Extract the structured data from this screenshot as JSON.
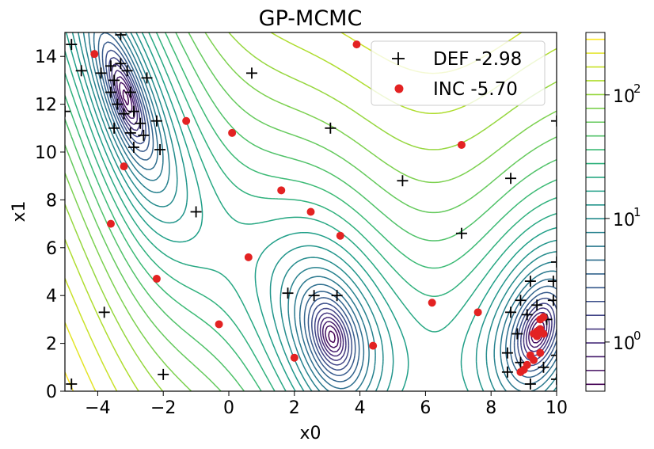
{
  "chart_data": {
    "type": "scatter",
    "title": "GP-MCMC",
    "xlabel": "x0",
    "ylabel": "x1",
    "xlim": [
      -5,
      10
    ],
    "ylim": [
      0,
      15
    ],
    "xticks": [
      -4,
      -2,
      0,
      2,
      4,
      6,
      8,
      10
    ],
    "yticks": [
      0,
      2,
      4,
      6,
      8,
      10,
      12,
      14
    ],
    "xtick_labels": [
      "−4",
      "−2",
      "0",
      "2",
      "4",
      "6",
      "8",
      "10"
    ],
    "ytick_labels": [
      "0",
      "2",
      "4",
      "6",
      "8",
      "10",
      "12",
      "14"
    ],
    "grid": false,
    "legend_position": "top-right",
    "background": "contour plot of a log-scaled objective (viridis), minima near (-3.1, 12.3), (3.1, 2.3), (9.4, 2.5)",
    "colorbar": {
      "scale": "log",
      "range": [
        0.4,
        320
      ],
      "ticks": [
        1,
        10,
        100
      ],
      "tick_labels": [
        "10",
        "10",
        "10"
      ],
      "tick_exponents": [
        "0",
        "1",
        "2"
      ]
    },
    "colors": {
      "def": "#000000",
      "inc": "#e32222"
    },
    "series": [
      {
        "name": "DEF",
        "label": "DEF  -2.98",
        "marker": "plus",
        "points": [
          [
            -4.8,
            14.5
          ],
          [
            -4.5,
            13.4
          ],
          [
            -3.9,
            13.3
          ],
          [
            -3.6,
            13.6
          ],
          [
            -3.5,
            13.0
          ],
          [
            -3.3,
            13.7
          ],
          [
            -3.1,
            13.4
          ],
          [
            -3.6,
            12.5
          ],
          [
            -3.4,
            12.0
          ],
          [
            -3.0,
            12.5
          ],
          [
            -3.5,
            11.0
          ],
          [
            -3.2,
            11.6
          ],
          [
            -2.9,
            11.7
          ],
          [
            -2.7,
            11.2
          ],
          [
            -3.0,
            10.8
          ],
          [
            -2.6,
            10.7
          ],
          [
            -2.9,
            10.2
          ],
          [
            -2.5,
            13.1
          ],
          [
            -2.2,
            11.3
          ],
          [
            -2.1,
            10.1
          ],
          [
            -5.0,
            11.7
          ],
          [
            -3.3,
            14.9
          ],
          [
            0.7,
            13.3
          ],
          [
            3.1,
            11.0
          ],
          [
            5.3,
            8.8
          ],
          [
            8.6,
            8.9
          ],
          [
            10.0,
            11.3
          ],
          [
            -1.0,
            7.5
          ],
          [
            7.1,
            6.6
          ],
          [
            1.8,
            4.1
          ],
          [
            2.6,
            4.0
          ],
          [
            3.3,
            4.0
          ],
          [
            -3.8,
            3.3
          ],
          [
            -2.0,
            0.7
          ],
          [
            -4.8,
            0.3
          ],
          [
            9.2,
            4.6
          ],
          [
            9.9,
            4.6
          ],
          [
            10.0,
            5.4
          ],
          [
            8.9,
            3.8
          ],
          [
            9.4,
            3.6
          ],
          [
            9.9,
            3.8
          ],
          [
            8.6,
            3.3
          ],
          [
            9.1,
            3.2
          ],
          [
            8.8,
            2.4
          ],
          [
            8.5,
            1.6
          ],
          [
            8.9,
            1.2
          ],
          [
            8.5,
            0.8
          ],
          [
            9.2,
            0.3
          ],
          [
            9.6,
            1.0
          ],
          [
            10.0,
            1.5
          ],
          [
            10.0,
            0.5
          ],
          [
            9.7,
            3.0
          ]
        ]
      },
      {
        "name": "INC",
        "label": "INC  -5.70",
        "marker": "filled-circle",
        "points": [
          [
            -4.1,
            14.1
          ],
          [
            3.9,
            14.5
          ],
          [
            -1.3,
            11.3
          ],
          [
            0.1,
            10.8
          ],
          [
            -3.2,
            9.4
          ],
          [
            7.1,
            10.3
          ],
          [
            1.6,
            8.4
          ],
          [
            2.5,
            7.5
          ],
          [
            -3.6,
            7.0
          ],
          [
            3.4,
            6.5
          ],
          [
            0.6,
            5.6
          ],
          [
            -2.2,
            4.7
          ],
          [
            6.2,
            3.7
          ],
          [
            7.6,
            3.3
          ],
          [
            -0.3,
            2.8
          ],
          [
            2.0,
            1.4
          ],
          [
            4.4,
            1.9
          ],
          [
            9.5,
            3.0
          ],
          [
            9.6,
            3.1
          ],
          [
            9.3,
            2.4
          ],
          [
            9.4,
            2.5
          ],
          [
            9.5,
            2.6
          ],
          [
            9.6,
            2.4
          ],
          [
            9.4,
            2.3
          ],
          [
            9.5,
            1.6
          ],
          [
            9.3,
            1.3
          ],
          [
            9.1,
            1.1
          ],
          [
            8.9,
            0.8
          ],
          [
            9.0,
            0.9
          ],
          [
            9.2,
            1.5
          ]
        ]
      }
    ]
  }
}
